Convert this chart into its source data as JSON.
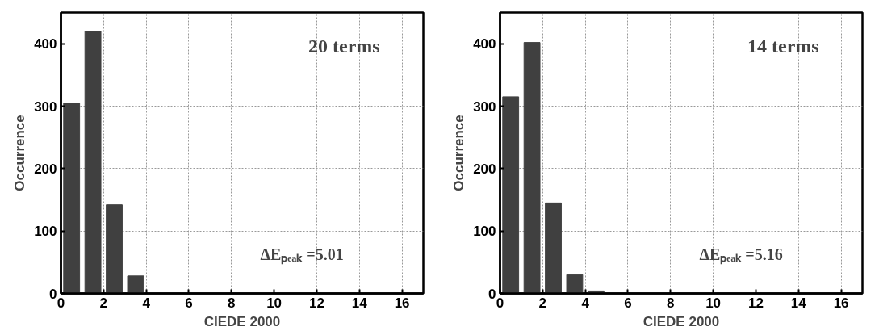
{
  "chart_data": [
    {
      "type": "bar",
      "x": [
        0.5,
        1.5,
        2.5,
        3.5,
        4.5
      ],
      "values": [
        305,
        420,
        142,
        28,
        1
      ],
      "color": "#404040",
      "xlabel": "CIEDE 2000",
      "ylabel": "Occurrence",
      "xlim": [
        0,
        17
      ],
      "ylim": [
        0,
        450
      ],
      "xticks": [
        0,
        2,
        4,
        6,
        8,
        10,
        12,
        14,
        16
      ],
      "yticks": [
        0,
        100,
        200,
        300,
        400
      ],
      "grid": true,
      "annotations": [
        "20 terms",
        "ΔEₚₑₐₖ =5.01"
      ]
    },
    {
      "type": "bar",
      "x": [
        0.5,
        1.5,
        2.5,
        3.5,
        4.5,
        5.5
      ],
      "values": [
        315,
        402,
        145,
        30,
        4,
        1
      ],
      "color": "#404040",
      "xlabel": "CIEDE 2000",
      "ylabel": "Occurrence",
      "xlim": [
        0,
        17
      ],
      "ylim": [
        0,
        450
      ],
      "xticks": [
        0,
        2,
        4,
        6,
        8,
        10,
        12,
        14,
        16
      ],
      "yticks": [
        0,
        100,
        200,
        300,
        400
      ],
      "grid": true,
      "annotations": [
        "14 terms",
        "ΔEₚₑₐₖ =5.16"
      ]
    }
  ]
}
